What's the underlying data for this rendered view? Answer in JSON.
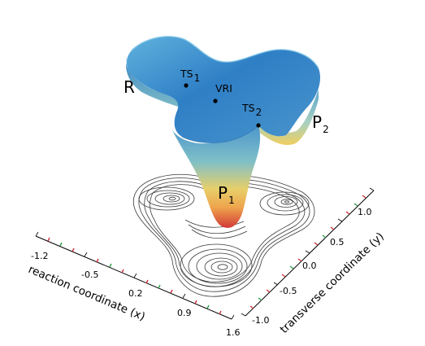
{
  "diagram": {
    "stationary_points": {
      "ts1": {
        "name": "TS",
        "sub": "1"
      },
      "vri": {
        "name": "VRI"
      },
      "ts2": {
        "name": "TS",
        "sub": "2"
      }
    },
    "regions": {
      "reactant": {
        "name": "R"
      },
      "product1": {
        "name": "P",
        "sub": "1"
      },
      "product2": {
        "name": "P",
        "sub": "2"
      }
    },
    "axes": {
      "x": {
        "title": "reaction coordinate (x)",
        "ticks": [
          "-1.2",
          "-0.5",
          "0.2",
          "0.9",
          "1.6"
        ]
      },
      "y": {
        "title": "transverse coordinate (y)",
        "ticks": [
          "-1.0",
          "-0.5",
          "0.0",
          "0.5",
          "1.0"
        ]
      }
    },
    "colors": {
      "surface_top": "#3a8fd0",
      "surface_mid": "#8ec3c8",
      "surface_yellow": "#f2cf5a",
      "surface_bottom": "#d6363a",
      "contour": "#333333"
    }
  }
}
